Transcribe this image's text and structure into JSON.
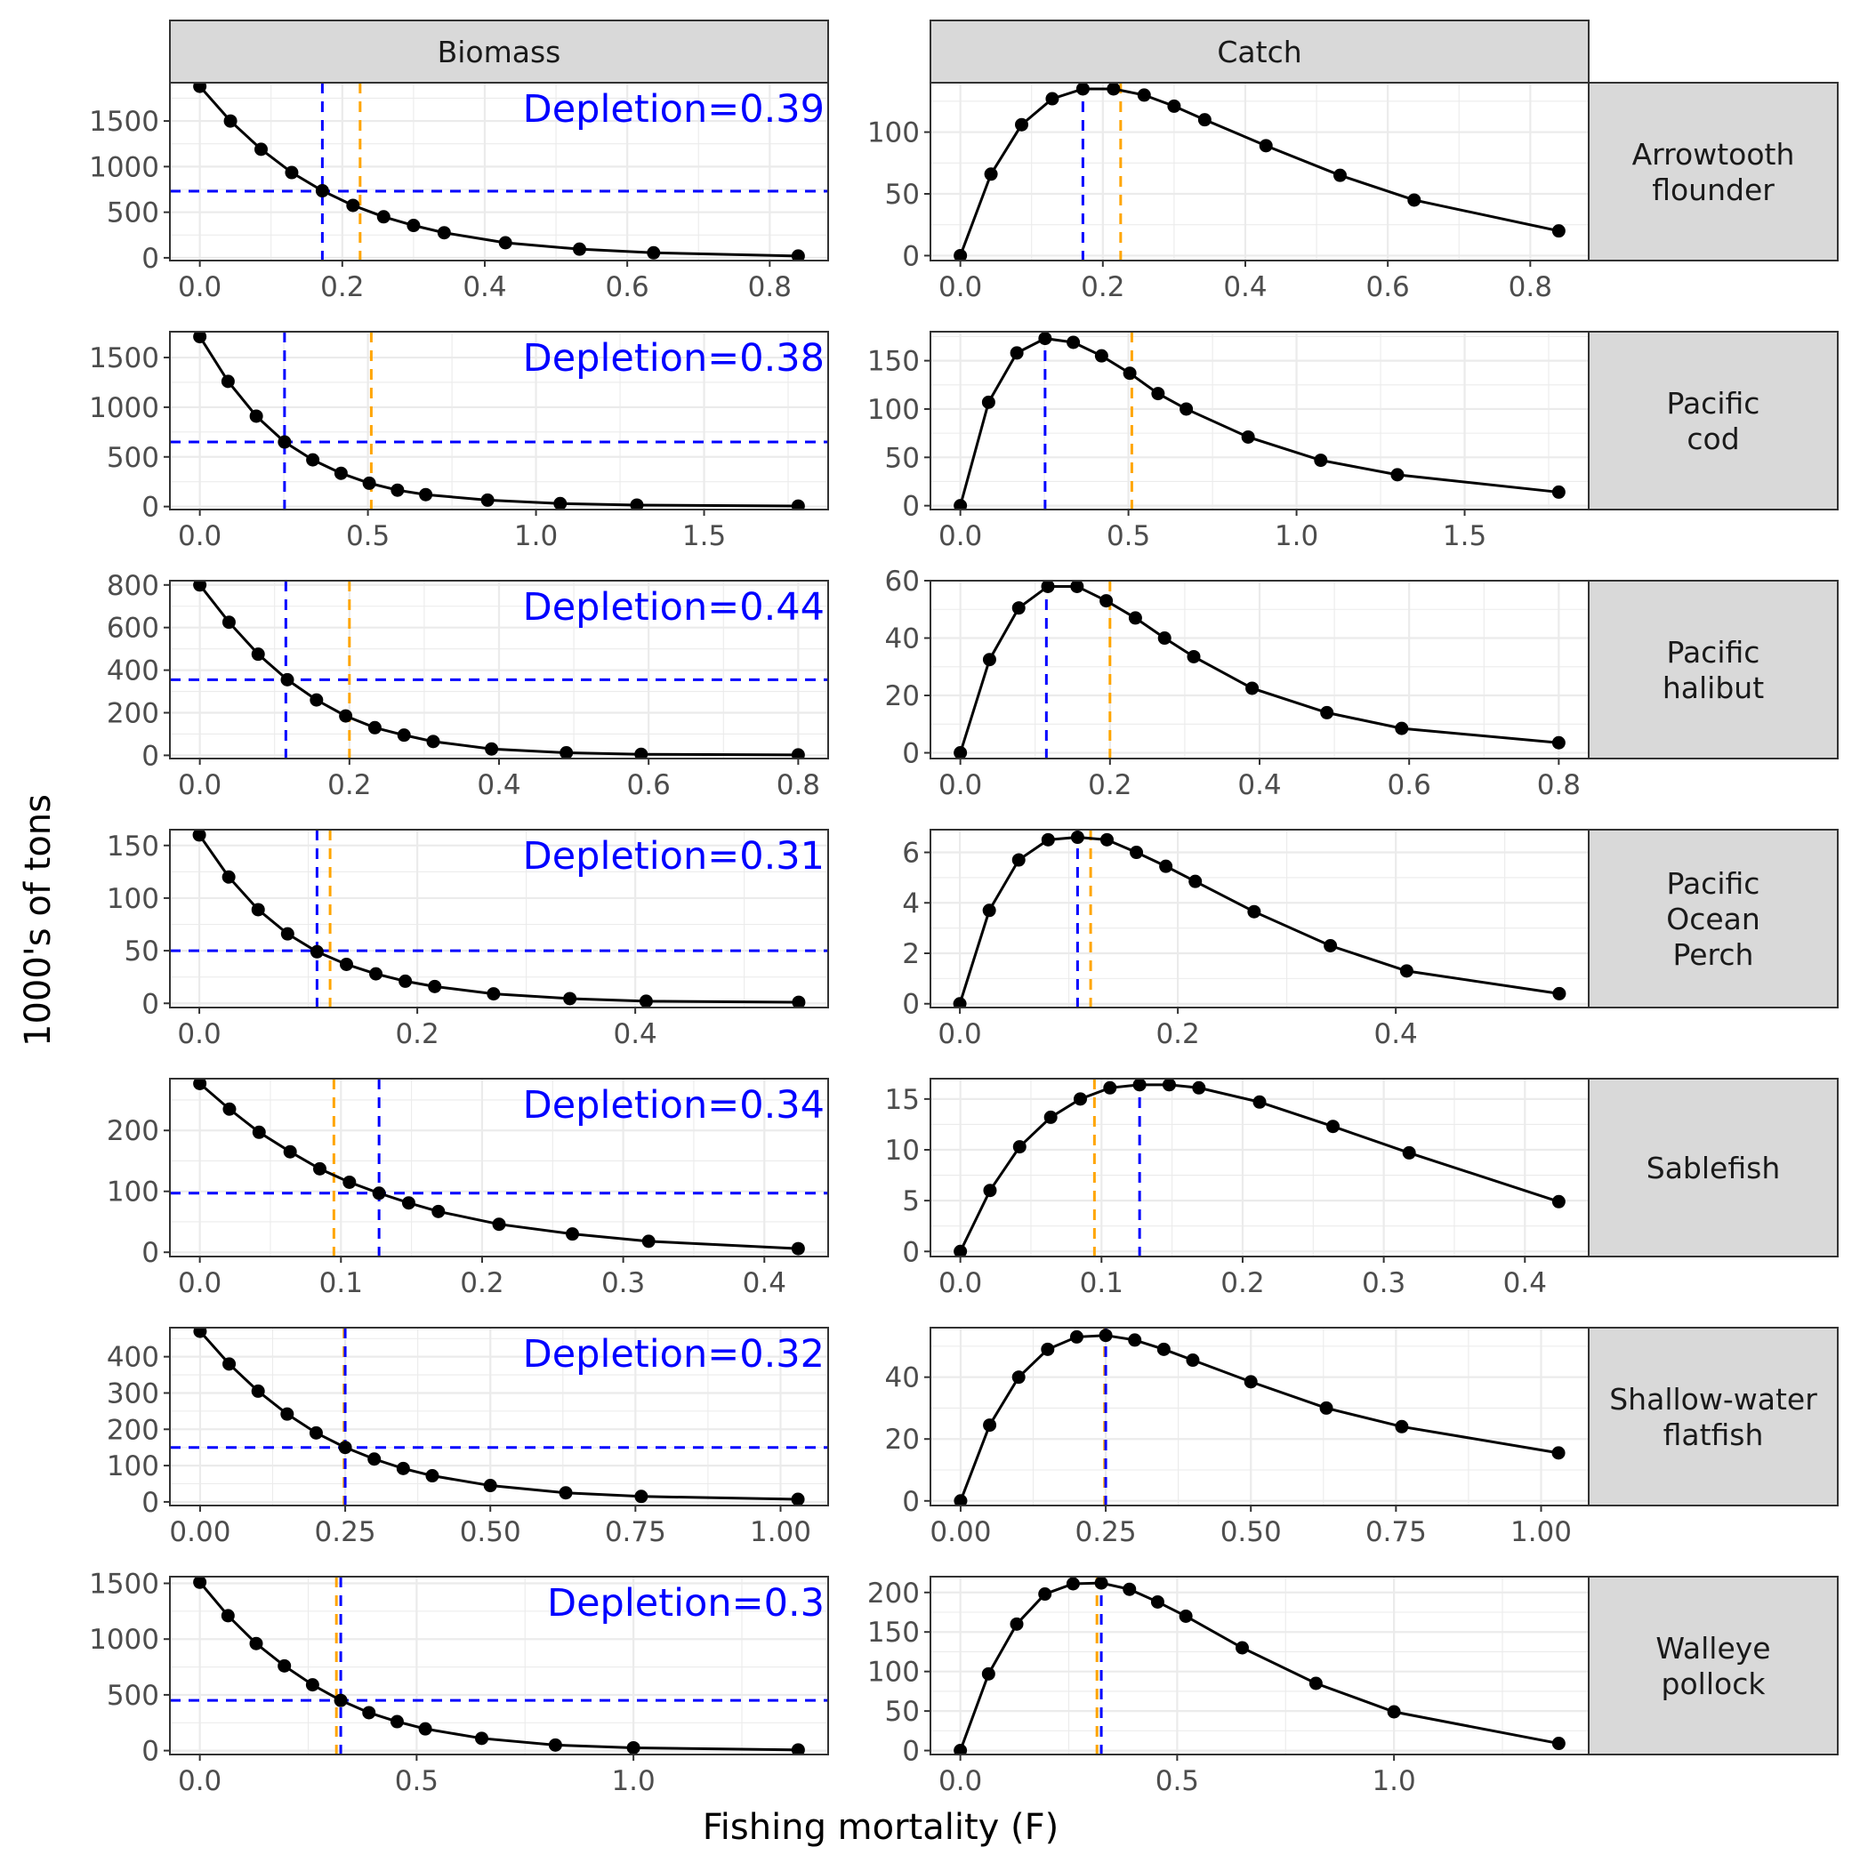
{
  "figure": {
    "xlabel": "Fishing mortality (F)",
    "ylabel": "1000's of tons",
    "column_strips": [
      "Biomass",
      "Catch"
    ],
    "colors": {
      "points": "#000000",
      "line": "#000000",
      "reference_blue": "#0000ff",
      "reference_orange": "#ffa500",
      "strip_fill": "#d9d9d9",
      "grid": "#ebebeb",
      "panel_border": "#333333"
    }
  },
  "chart_data": [
    {
      "species": "Arrowtooth flounder",
      "depletion_label": "Depletion=0.39",
      "x_ticks": [
        "0.0",
        "0.2",
        "0.4",
        "0.6",
        "0.8"
      ],
      "x_tick_values": [
        0,
        0.2,
        0.4,
        0.6,
        0.8
      ],
      "xlim": [
        -0.042,
        0.882
      ],
      "f": [
        0,
        0.043,
        0.086,
        0.129,
        0.172,
        0.215,
        0.258,
        0.3,
        0.343,
        0.429,
        0.533,
        0.637,
        0.84
      ],
      "biomass": {
        "type": "line",
        "ylim": [
          -30,
          1920
        ],
        "y_ticks": [
          "0",
          "500",
          "1000",
          "1500"
        ],
        "y_tick_values": [
          0,
          500,
          1000,
          1500
        ],
        "values": [
          1880,
          1500,
          1190,
          935,
          735,
          575,
          450,
          355,
          275,
          165,
          95,
          55,
          20
        ],
        "hline": 730,
        "vlines": [
          {
            "x": 0.172,
            "color": "blue"
          },
          {
            "x": 0.225,
            "color": "orange"
          }
        ]
      },
      "catch": {
        "type": "line",
        "ylim": [
          -4,
          140
        ],
        "y_ticks": [
          "0",
          "50",
          "100"
        ],
        "y_tick_values": [
          0,
          50,
          100
        ],
        "values": [
          0,
          66,
          106,
          127,
          135,
          135,
          130,
          121,
          110,
          89,
          65,
          45,
          20
        ],
        "vlines": [
          {
            "x": 0.172,
            "color": "blue"
          },
          {
            "x": 0.225,
            "color": "orange"
          }
        ]
      }
    },
    {
      "species": "Pacific cod",
      "depletion_label": "Depletion=0.38",
      "x_ticks": [
        "0.0",
        "0.5",
        "1.0",
        "1.5"
      ],
      "x_tick_values": [
        0,
        0.5,
        1,
        1.5
      ],
      "xlim": [
        -0.089,
        1.869
      ],
      "f": [
        0,
        0.084,
        0.168,
        0.252,
        0.336,
        0.42,
        0.504,
        0.588,
        0.672,
        0.856,
        1.072,
        1.3,
        1.78
      ],
      "biomass": {
        "type": "line",
        "ylim": [
          -30,
          1760
        ],
        "y_ticks": [
          "0",
          "500",
          "1000",
          "1500"
        ],
        "y_tick_values": [
          0,
          500,
          1000,
          1500
        ],
        "values": [
          1710,
          1260,
          910,
          650,
          470,
          335,
          235,
          165,
          120,
          65,
          30,
          15,
          5
        ],
        "hline": 650,
        "vlines": [
          {
            "x": 0.252,
            "color": "blue"
          },
          {
            "x": 0.51,
            "color": "orange"
          }
        ]
      },
      "catch": {
        "type": "line",
        "ylim": [
          -4,
          180
        ],
        "y_ticks": [
          "0",
          "50",
          "100",
          "150"
        ],
        "y_tick_values": [
          0,
          50,
          100,
          150
        ],
        "values": [
          0,
          107,
          158,
          173,
          169,
          155,
          137,
          116,
          100,
          71,
          47,
          32,
          14
        ],
        "vlines": [
          {
            "x": 0.252,
            "color": "blue"
          },
          {
            "x": 0.51,
            "color": "orange"
          }
        ]
      }
    },
    {
      "species": "Pacific halibut",
      "depletion_label": "Depletion=0.44",
      "x_ticks": [
        "0.0",
        "0.2",
        "0.4",
        "0.6",
        "0.8"
      ],
      "x_tick_values": [
        0,
        0.2,
        0.4,
        0.6,
        0.8
      ],
      "xlim": [
        -0.04,
        0.84
      ],
      "f": [
        0,
        0.039,
        0.078,
        0.117,
        0.156,
        0.195,
        0.234,
        0.273,
        0.312,
        0.39,
        0.49,
        0.59,
        0.8
      ],
      "biomass": {
        "type": "line",
        "ylim": [
          -15,
          820
        ],
        "y_ticks": [
          "0",
          "200",
          "400",
          "600",
          "800"
        ],
        "y_tick_values": [
          0,
          200,
          400,
          600,
          800
        ],
        "values": [
          800,
          625,
          475,
          355,
          260,
          185,
          130,
          95,
          65,
          30,
          12,
          5,
          2
        ],
        "hline": 355,
        "vlines": [
          {
            "x": 0.115,
            "color": "blue"
          },
          {
            "x": 0.2,
            "color": "orange"
          }
        ]
      },
      "catch": {
        "type": "line",
        "ylim": [
          -2,
          60
        ],
        "y_ticks": [
          "0",
          "20",
          "40",
          "60"
        ],
        "y_tick_values": [
          0,
          20,
          40,
          60
        ],
        "values": [
          0,
          32.5,
          50.5,
          58,
          58,
          53,
          47,
          40,
          33.5,
          22.5,
          14,
          8.5,
          3.5
        ],
        "vlines": [
          {
            "x": 0.115,
            "color": "blue"
          },
          {
            "x": 0.2,
            "color": "orange"
          }
        ]
      }
    },
    {
      "species": "Pacific Ocean Perch",
      "depletion_label": "Depletion=0.31",
      "x_ticks": [
        "0.0",
        "0.2",
        "0.4"
      ],
      "x_tick_values": [
        0,
        0.2,
        0.4
      ],
      "xlim": [
        -0.027,
        0.577
      ],
      "f": [
        0,
        0.027,
        0.054,
        0.081,
        0.108,
        0.135,
        0.162,
        0.189,
        0.216,
        0.27,
        0.34,
        0.41,
        0.55
      ],
      "biomass": {
        "type": "line",
        "ylim": [
          -4,
          165
        ],
        "y_ticks": [
          "0",
          "50",
          "100",
          "150"
        ],
        "y_tick_values": [
          0,
          50,
          100,
          150
        ],
        "values": [
          160,
          120,
          89,
          66,
          49,
          37,
          28,
          21,
          16,
          9,
          4.5,
          2,
          1
        ],
        "hline": 50,
        "vlines": [
          {
            "x": 0.108,
            "color": "blue"
          },
          {
            "x": 0.12,
            "color": "orange"
          }
        ]
      },
      "catch": {
        "type": "line",
        "ylim": [
          -0.15,
          6.9
        ],
        "y_ticks": [
          "0",
          "2",
          "4",
          "6"
        ],
        "y_tick_values": [
          0,
          2,
          4,
          6
        ],
        "values": [
          0,
          3.7,
          5.7,
          6.5,
          6.6,
          6.5,
          6.0,
          5.45,
          4.85,
          3.65,
          2.3,
          1.3,
          0.4
        ],
        "vlines": [
          {
            "x": 0.108,
            "color": "blue"
          },
          {
            "x": 0.12,
            "color": "orange"
          }
        ]
      }
    },
    {
      "species": "Sablefish",
      "depletion_label": "Depletion=0.34",
      "x_ticks": [
        "0.0",
        "0.1",
        "0.2",
        "0.3",
        "0.4"
      ],
      "x_tick_values": [
        0,
        0.1,
        0.2,
        0.3,
        0.4
      ],
      "xlim": [
        -0.0212,
        0.4452
      ],
      "f": [
        0,
        0.021,
        0.042,
        0.064,
        0.085,
        0.106,
        0.127,
        0.148,
        0.169,
        0.212,
        0.264,
        0.318,
        0.424
      ],
      "biomass": {
        "type": "line",
        "ylim": [
          -7,
          285
        ],
        "y_ticks": [
          "0",
          "100",
          "200"
        ],
        "y_tick_values": [
          0,
          100,
          200
        ],
        "values": [
          277,
          235,
          197,
          165,
          137,
          115,
          97,
          81,
          67,
          46,
          30,
          18,
          6
        ],
        "hline": 97,
        "vlines": [
          {
            "x": 0.127,
            "color": "blue"
          },
          {
            "x": 0.095,
            "color": "orange"
          }
        ]
      },
      "catch": {
        "type": "line",
        "ylim": [
          -0.5,
          17
        ],
        "y_ticks": [
          "0",
          "5",
          "10",
          "15"
        ],
        "y_tick_values": [
          0,
          5,
          10,
          15
        ],
        "values": [
          0,
          6,
          10.3,
          13.2,
          15,
          16.1,
          16.4,
          16.4,
          16.1,
          14.7,
          12.3,
          9.7,
          4.9
        ],
        "vlines": [
          {
            "x": 0.127,
            "color": "blue"
          },
          {
            "x": 0.095,
            "color": "orange"
          }
        ]
      }
    },
    {
      "species": "Shallow-water flatfish",
      "depletion_label": "Depletion=0.32",
      "x_ticks": [
        "0.00",
        "0.25",
        "0.50",
        "0.75",
        "1.00"
      ],
      "x_tick_values": [
        0,
        0.25,
        0.5,
        0.75,
        1
      ],
      "xlim": [
        -0.052,
        1.082
      ],
      "f": [
        0,
        0.05,
        0.1,
        0.15,
        0.2,
        0.25,
        0.3,
        0.35,
        0.4,
        0.5,
        0.63,
        0.76,
        1.03
      ],
      "biomass": {
        "type": "line",
        "ylim": [
          -10,
          480
        ],
        "y_ticks": [
          "0",
          "100",
          "200",
          "300",
          "400"
        ],
        "y_tick_values": [
          0,
          100,
          200,
          300,
          400
        ],
        "values": [
          470,
          380,
          305,
          242,
          190,
          150,
          118,
          92,
          72,
          45,
          25,
          15,
          7
        ],
        "hline": 150,
        "vlines": [
          {
            "x": 0.248,
            "color": "orange"
          },
          {
            "x": 0.25,
            "color": "blue"
          }
        ]
      },
      "catch": {
        "type": "line",
        "ylim": [
          -1.5,
          56
        ],
        "y_ticks": [
          "0",
          "20",
          "40"
        ],
        "y_tick_values": [
          0,
          20,
          40
        ],
        "values": [
          0,
          24.5,
          40,
          49,
          53,
          53.5,
          52,
          49,
          45.5,
          38.5,
          30,
          24,
          15.5
        ],
        "vlines": [
          {
            "x": 0.248,
            "color": "orange"
          },
          {
            "x": 0.25,
            "color": "blue"
          }
        ]
      }
    },
    {
      "species": "Walleye pollock",
      "depletion_label": "Depletion=0.3",
      "x_ticks": [
        "0.0",
        "0.5",
        "1.0"
      ],
      "x_tick_values": [
        0,
        0.5,
        1
      ],
      "xlim": [
        -0.069,
        1.449
      ],
      "f": [
        0,
        0.065,
        0.13,
        0.195,
        0.26,
        0.325,
        0.39,
        0.455,
        0.52,
        0.65,
        0.82,
        1.0,
        1.38
      ],
      "biomass": {
        "type": "line",
        "ylim": [
          -35,
          1560
        ],
        "y_ticks": [
          "0",
          "500",
          "1000",
          "1500"
        ],
        "y_tick_values": [
          0,
          500,
          1000,
          1500
        ],
        "values": [
          1510,
          1210,
          960,
          760,
          590,
          450,
          340,
          260,
          195,
          110,
          50,
          25,
          6
        ],
        "hline": 450,
        "vlines": [
          {
            "x": 0.315,
            "color": "orange"
          },
          {
            "x": 0.325,
            "color": "blue"
          }
        ]
      },
      "catch": {
        "type": "line",
        "ylim": [
          -5,
          220
        ],
        "y_ticks": [
          "0",
          "50",
          "100",
          "150",
          "200"
        ],
        "y_tick_values": [
          0,
          50,
          100,
          150,
          200
        ],
        "values": [
          0,
          97,
          160,
          198,
          211,
          212,
          204,
          188,
          170,
          130,
          85,
          49,
          9
        ],
        "vlines": [
          {
            "x": 0.315,
            "color": "orange"
          },
          {
            "x": 0.325,
            "color": "blue"
          }
        ]
      }
    }
  ]
}
